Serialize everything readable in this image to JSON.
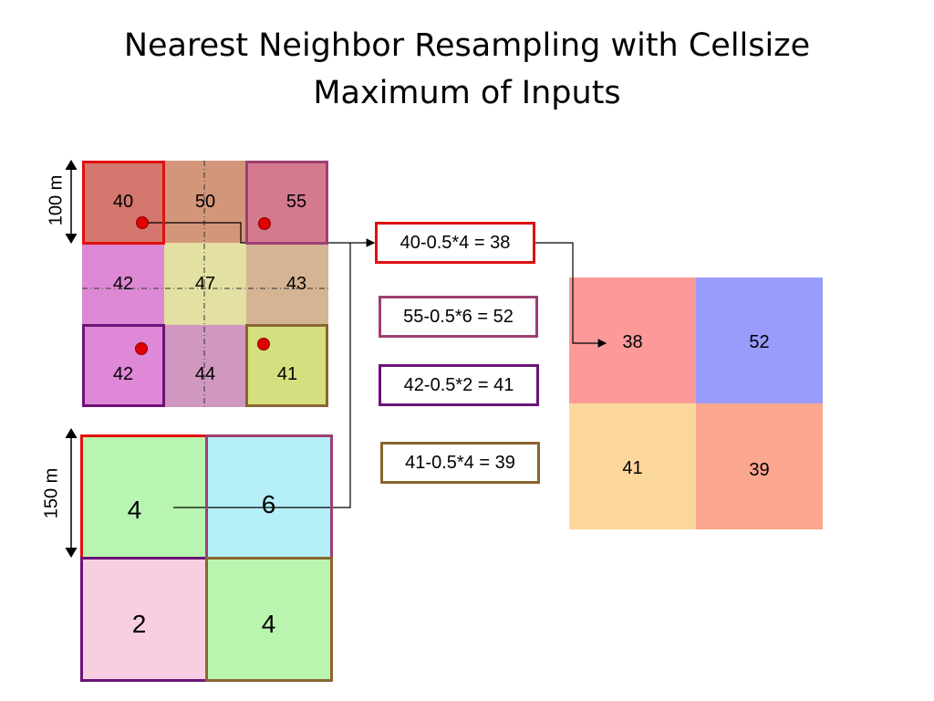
{
  "title": {
    "line1": "Nearest Neighbor Resampling with Cellsize",
    "line2": "Maximum of Inputs"
  },
  "dimensions": {
    "top_grid": "100 m",
    "bottom_grid": "150 m"
  },
  "top_grid": [
    [
      "40",
      "50",
      "55"
    ],
    [
      "42",
      "47",
      "43"
    ],
    [
      "42",
      "44",
      "41"
    ]
  ],
  "bottom_grid": [
    [
      "4",
      "6"
    ],
    [
      "2",
      "4"
    ]
  ],
  "equations": [
    "40-0.5*4 = 38",
    "55-0.5*6 = 52",
    "42-0.5*2 = 41",
    "41-0.5*4 = 39"
  ],
  "output_grid": [
    [
      "38",
      "52"
    ],
    [
      "41",
      "39"
    ]
  ],
  "colors": {
    "top_grid": [
      [
        "#d4776f",
        "#d4967b",
        "#d47a8f"
      ],
      [
        "#dd88d4",
        "#e3e0a3",
        "#d5b493"
      ],
      [
        "#de88d7",
        "#d098bf",
        "#d4e07f"
      ]
    ],
    "bottom_grid": [
      [
        "#b8f5b0",
        "#b5eff8"
      ],
      [
        "#f8cfe2",
        "#b9f5af"
      ]
    ],
    "output_grid": [
      [
        "#fc9a9a",
        "#9a9cfb"
      ],
      [
        "#fcd79b",
        "#fba68f"
      ]
    ],
    "frame_red": "#e01010",
    "frame_mauve": "#9c3f72",
    "frame_purple": "#6b1378",
    "frame_brown": "#8a6530"
  }
}
